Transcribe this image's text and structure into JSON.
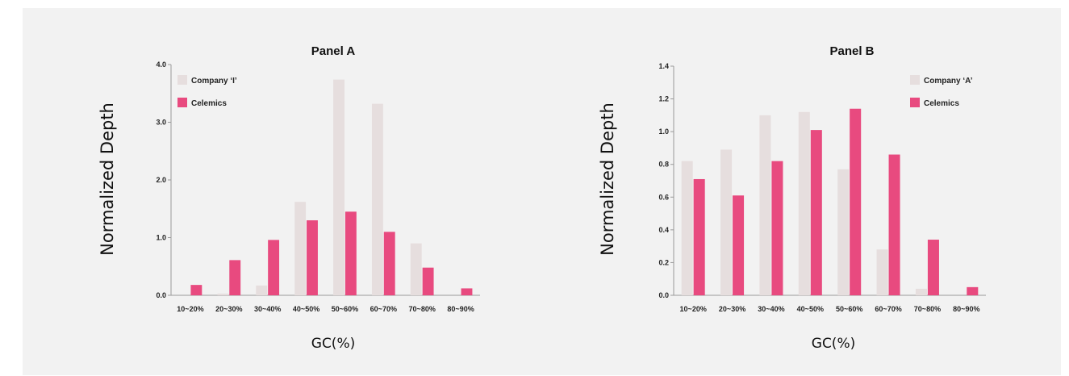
{
  "colors": {
    "competitor": "#e6dede",
    "celemics": "#e84a7f",
    "axis": "#999999",
    "background": "#f2f2f2"
  },
  "chart_data": [
    {
      "type": "bar",
      "title": "Panel A",
      "xlabel": "GC(%)",
      "ylabel": "Normalized Depth",
      "categories": [
        "10~20%",
        "20~30%",
        "30~40%",
        "40~50%",
        "50~60%",
        "60~70%",
        "70~80%",
        "80~90%"
      ],
      "yticks": [
        "0.0",
        "1.0",
        "2.0",
        "3.0",
        "4.0"
      ],
      "ylim": [
        0,
        4.0
      ],
      "legend_position": "top-left",
      "series": [
        {
          "name": "Company ‘I’",
          "values": [
            0.0,
            0.03,
            0.17,
            1.62,
            3.74,
            3.32,
            0.9,
            0.0
          ]
        },
        {
          "name": "Celemics",
          "values": [
            0.18,
            0.61,
            0.96,
            1.3,
            1.45,
            1.1,
            0.48,
            0.12
          ]
        }
      ]
    },
    {
      "type": "bar",
      "title": "Panel B",
      "xlabel": "GC(%)",
      "ylabel": "Normalized Depth",
      "categories": [
        "10~20%",
        "20~30%",
        "30~40%",
        "40~50%",
        "50~60%",
        "60~70%",
        "70~80%",
        "80~90%"
      ],
      "yticks": [
        "0.0",
        "0.2",
        "0.4",
        "0.6",
        "0.8",
        "1.0",
        "1.2",
        "1.4"
      ],
      "ylim": [
        0,
        1.4
      ],
      "legend_position": "top-right",
      "series": [
        {
          "name": "Company ‘A’",
          "values": [
            0.82,
            0.89,
            1.1,
            1.12,
            0.77,
            0.28,
            0.04,
            0.0
          ]
        },
        {
          "name": "Celemics",
          "values": [
            0.71,
            0.61,
            0.82,
            1.01,
            1.14,
            0.86,
            0.34,
            0.05
          ]
        }
      ]
    }
  ]
}
